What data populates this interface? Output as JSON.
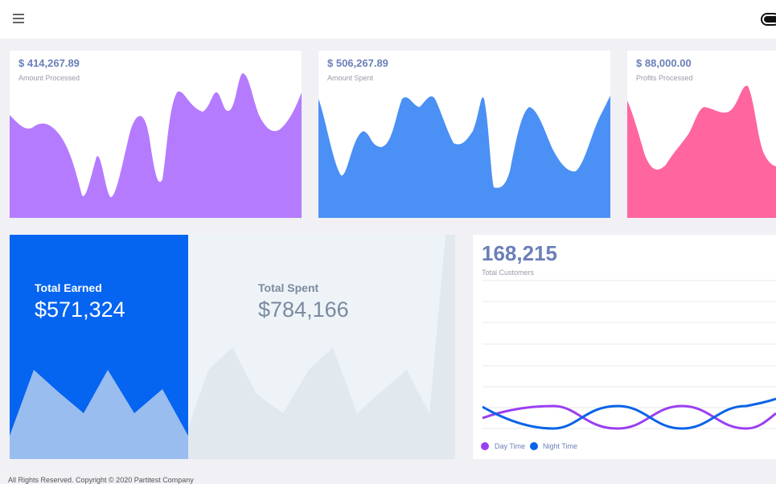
{
  "cards": [
    {
      "value": "$ 414,267.89",
      "label": "Amount Processed"
    },
    {
      "value": "$ 506,267.89",
      "label": "Amount Spent"
    },
    {
      "value": "$ 88,000.00",
      "label": "Profits Processed"
    }
  ],
  "totals": {
    "earned": {
      "title": "Total Earned",
      "value": "$571,324"
    },
    "spent": {
      "title": "Total Spent",
      "value": "$784,166"
    }
  },
  "customers": {
    "value": "168,215",
    "label": "Total Customers",
    "legend": [
      "Day Time",
      "Night Time"
    ]
  },
  "footer": "All Rights Reserved. Copyright © 2020 Partitest Company"
}
